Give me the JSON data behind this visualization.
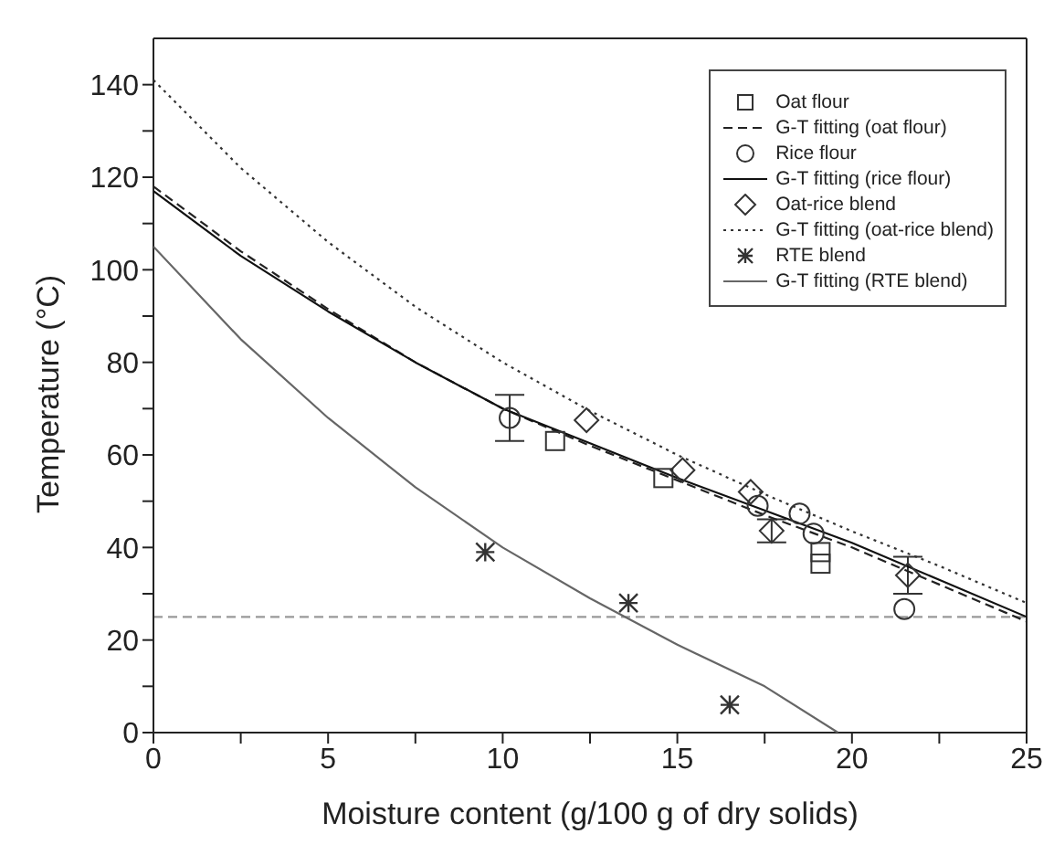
{
  "chart_data": {
    "type": "scatter",
    "xlabel": "Moisture content (g/100 g of dry solids)",
    "ylabel": "Temperature (°C)",
    "xlim": [
      0,
      25
    ],
    "xticks": [
      0,
      {
        "value": 2.5,
        "label": null
      },
      5,
      {
        "value": 7.5,
        "label": null
      },
      10,
      {
        "value": 12.5,
        "label": null
      },
      15,
      {
        "value": 17.5,
        "label": null
      },
      20,
      {
        "value": 22.5,
        "label": null
      },
      25
    ],
    "ylim": [
      0,
      150
    ],
    "yticks": [
      0,
      {
        "value": 10,
        "label": null
      },
      20,
      {
        "value": 30,
        "label": null
      },
      40,
      {
        "value": 50,
        "label": null
      },
      60,
      {
        "value": 70,
        "label": null
      },
      80,
      {
        "value": 90,
        "label": null
      },
      100,
      {
        "value": 110,
        "label": null
      },
      120,
      {
        "value": 130,
        "label": null
      },
      140
    ],
    "legend": "top right",
    "ref_lines": [
      {
        "axis": "y",
        "value": 25,
        "label": null,
        "color": "#999999",
        "line_style": "dashed"
      }
    ],
    "series": [
      {
        "name": "Oat flour",
        "marker": "square",
        "color": "#333333",
        "x": [
          11.5,
          14.6,
          19.1,
          19.1
        ],
        "values": [
          63,
          55,
          39,
          36.5
        ]
      },
      {
        "name": "G-T fitting (oat flour)",
        "type": "line",
        "marker": "none",
        "line_style": "dashed",
        "color": "#222222",
        "x": [
          0,
          2.5,
          5,
          7.5,
          10,
          12.5,
          15,
          17.5,
          20,
          22.5,
          25
        ],
        "values": [
          118,
          104,
          91.5,
          80,
          70,
          62,
          54.5,
          47,
          40,
          32,
          24
        ]
      },
      {
        "name": "Rice flour",
        "marker": "circle",
        "color": "#333333",
        "x": [
          10.2,
          17.3,
          18.5,
          18.9,
          21.5
        ],
        "values": [
          68,
          49,
          47.3,
          43,
          26.7
        ],
        "errors": [
          5,
          null,
          null,
          null,
          null
        ]
      },
      {
        "name": "G-T fitting (rice flour)",
        "type": "line",
        "marker": "none",
        "line_style": "solid",
        "color": "#111111",
        "x": [
          0,
          2.5,
          5,
          7.5,
          10,
          12.5,
          15,
          17.5,
          20,
          22.5,
          25
        ],
        "values": [
          117,
          103,
          91,
          80,
          70,
          62.5,
          55,
          48,
          41,
          33,
          25
        ]
      },
      {
        "name": "Oat-rice blend",
        "marker": "diamond",
        "color": "#333333",
        "x": [
          12.4,
          15.15,
          17.1,
          17.7,
          21.6
        ],
        "values": [
          67.5,
          56.7,
          52,
          43.6,
          34
        ],
        "errors": [
          null,
          null,
          null,
          2.5,
          4
        ]
      },
      {
        "name": "G-T fitting (oat-rice blend)",
        "type": "line",
        "marker": "none",
        "line_style": "dotted",
        "color": "#333333",
        "x": [
          0,
          2.5,
          5,
          7.5,
          10,
          12.5,
          15,
          17.5,
          20,
          22.5,
          25
        ],
        "values": [
          141,
          122,
          106,
          92,
          80,
          69.5,
          60,
          51.5,
          43.5,
          36,
          28
        ]
      },
      {
        "name": "RTE blend",
        "marker": "cross",
        "color": "#333333",
        "x": [
          9.5,
          13.6,
          16.5
        ],
        "values": [
          39,
          28,
          6
        ]
      },
      {
        "name": "G-T fitting (RTE blend)",
        "type": "line",
        "marker": "none",
        "line_style": "solid",
        "color": "#666666",
        "x": [
          0,
          2.5,
          5,
          7.5,
          10,
          12.5,
          15,
          17.5,
          19.6
        ],
        "values": [
          105,
          85,
          68,
          53,
          40,
          29,
          19,
          10,
          0
        ]
      }
    ]
  }
}
